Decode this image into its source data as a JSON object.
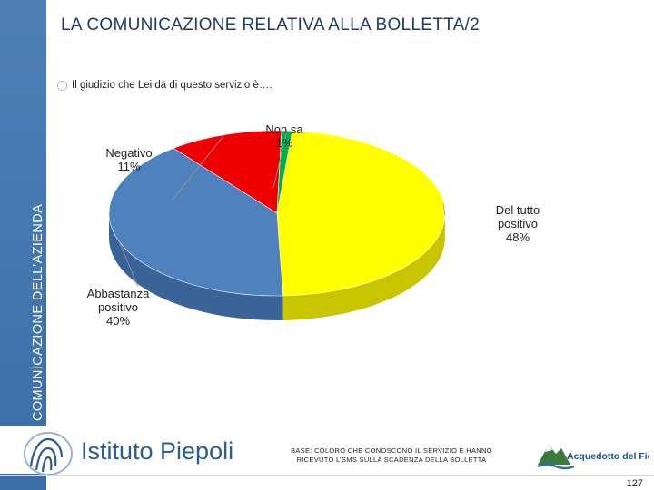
{
  "sidebar": {
    "label": "COMUNICAZIONE DELL’AZIENDA"
  },
  "slide": {
    "title": "LA COMUNICAZIONE RELATIVA ALLA BOLLETTA/2",
    "question": "Il giudizio che Lei dà di questo servizio è….",
    "bullet_icon": "dotted-circle-icon"
  },
  "chart_data": {
    "type": "pie",
    "title": "",
    "slices": [
      {
        "label_lines": [
          "Del tutto",
          "positivo"
        ],
        "pct_label": "48%",
        "value": 48,
        "color": "#ffff00",
        "side_color": "#c8c600"
      },
      {
        "label_lines": [
          "Abbastanza",
          "positivo"
        ],
        "pct_label": "40%",
        "value": 40,
        "color": "#4f81bd",
        "side_color": "#3a6497"
      },
      {
        "label_lines": [
          "Negativo"
        ],
        "pct_label": "11%",
        "value": 11,
        "color": "#ee0000",
        "side_color": "#b00000"
      },
      {
        "label_lines": [
          "Non sa"
        ],
        "pct_label": "1%",
        "value": 1,
        "color": "#00b050",
        "side_color": "#008a3e"
      }
    ],
    "three_d": true,
    "legend": "none (labels beside slices)"
  },
  "footer": {
    "brand": "Istituto Piepoli",
    "brand_icon": "piepoli-spiral-logo-icon",
    "base_line1": "BASE: COLORO CHE CONOSCONO IL SERVIZIO E HANNO",
    "base_line2": "RICEVUTO L’SMS SULLA SCADENZA DELLA BOLLETTA",
    "partner": "Acquedotto del Fiora",
    "partner_icon": "mountain-water-logo-icon",
    "page_number": "127"
  }
}
